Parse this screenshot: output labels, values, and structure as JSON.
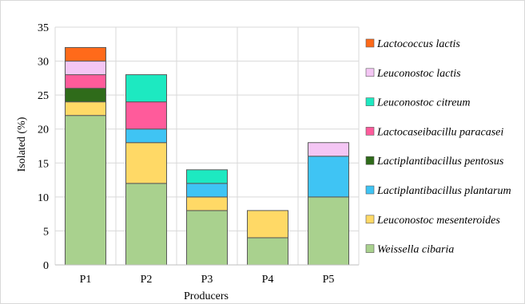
{
  "chart_data": {
    "type": "bar",
    "stacked": true,
    "categories": [
      "P1",
      "P2",
      "P3",
      "P4",
      "P5"
    ],
    "xlabel": "Producers",
    "ylabel": "Isolated (%)",
    "ylim": [
      0,
      35
    ],
    "yticks": [
      0,
      5,
      10,
      15,
      20,
      25,
      30,
      35
    ],
    "grid": true,
    "legend_position": "right",
    "series": [
      {
        "name": "Weissella cibaria",
        "color": "#a9d18e",
        "values": [
          22,
          12,
          8,
          4,
          10
        ]
      },
      {
        "name": "Leuconostoc mesenteroides",
        "color": "#ffd966",
        "values": [
          2,
          6,
          2,
          4,
          0
        ]
      },
      {
        "name": "Lactiplantibacillus plantarum",
        "color": "#3fc4f4",
        "values": [
          0,
          2,
          2,
          0,
          6
        ]
      },
      {
        "name": "Lactiplantibacillus pentosus",
        "color": "#2f6b1a",
        "values": [
          2,
          0,
          0,
          0,
          0
        ]
      },
      {
        "name": "Lactocaseibacillu paracasei",
        "color": "#ff5b9b",
        "values": [
          2,
          4,
          0,
          0,
          0
        ]
      },
      {
        "name": "Leuconostoc citreum",
        "color": "#1de9c1",
        "values": [
          0,
          4,
          2,
          0,
          0
        ]
      },
      {
        "name": "Leuconostoc lactis",
        "color": "#f4c6f4",
        "values": [
          2,
          0,
          0,
          0,
          2
        ]
      },
      {
        "name": "Lactococcus lactis",
        "color": "#ff6a1a",
        "values": [
          2,
          0,
          0,
          0,
          0
        ]
      }
    ]
  }
}
